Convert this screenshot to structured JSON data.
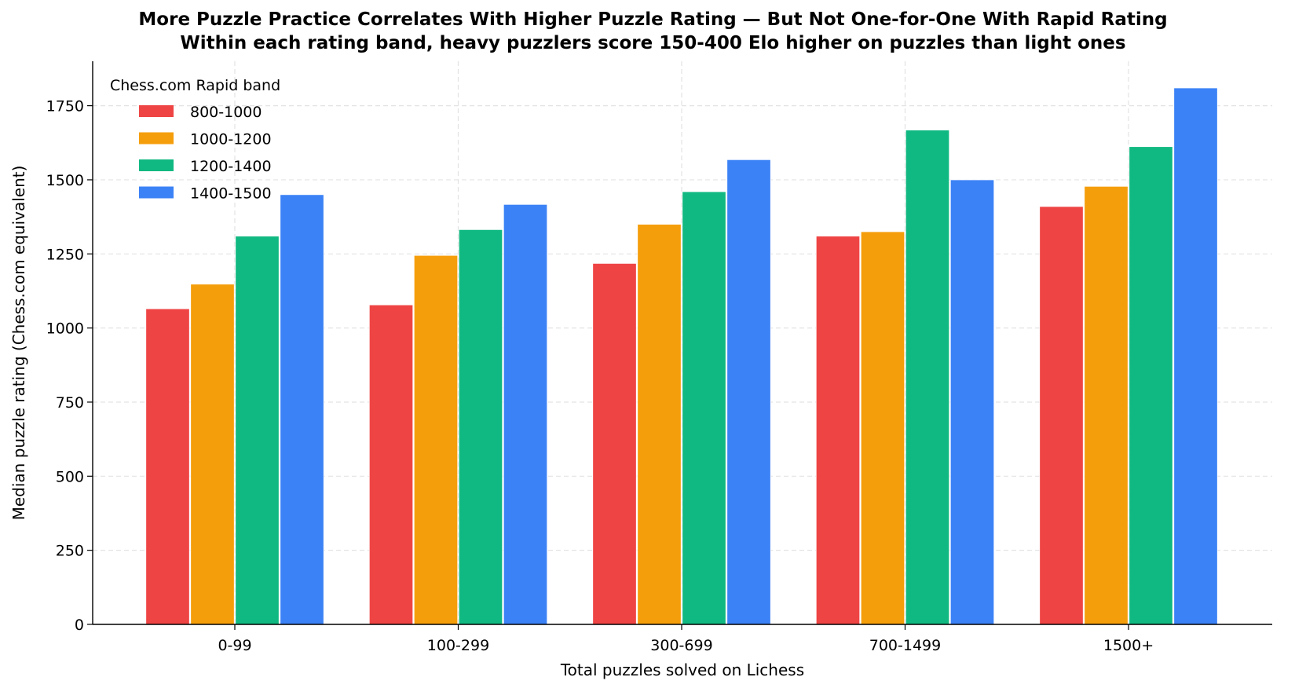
{
  "chart_data": {
    "type": "bar",
    "title": "More Puzzle Practice Correlates With Higher Puzzle Rating — But Not One-for-One With Rapid Rating",
    "subtitle": "Within each rating band, heavy puzzlers score 150-400 Elo higher on puzzles than light ones",
    "xlabel": "Total puzzles solved on Lichess",
    "ylabel": "Median puzzle rating (Chess.com equivalent)",
    "categories": [
      "0-99",
      "100-299",
      "300-699",
      "700-1499",
      "1500+"
    ],
    "ylim": [
      0,
      1900
    ],
    "yticks": [
      0,
      250,
      500,
      750,
      1000,
      1250,
      1500,
      1750
    ],
    "grid": true,
    "legend": {
      "title": "Chess.com Rapid band",
      "placement": "top-left"
    },
    "series": [
      {
        "name": "800-1000",
        "color": "#ef4444",
        "values": [
          1065,
          1078,
          1218,
          1310,
          1410
        ]
      },
      {
        "name": "1000-1200",
        "color": "#f59e0b",
        "values": [
          1148,
          1245,
          1350,
          1325,
          1478
        ]
      },
      {
        "name": "1200-1400",
        "color": "#10b981",
        "values": [
          1310,
          1332,
          1460,
          1668,
          1612
        ]
      },
      {
        "name": "1400-1500",
        "color": "#3b82f6",
        "values": [
          1450,
          1417,
          1568,
          1500,
          1810
        ]
      }
    ]
  }
}
